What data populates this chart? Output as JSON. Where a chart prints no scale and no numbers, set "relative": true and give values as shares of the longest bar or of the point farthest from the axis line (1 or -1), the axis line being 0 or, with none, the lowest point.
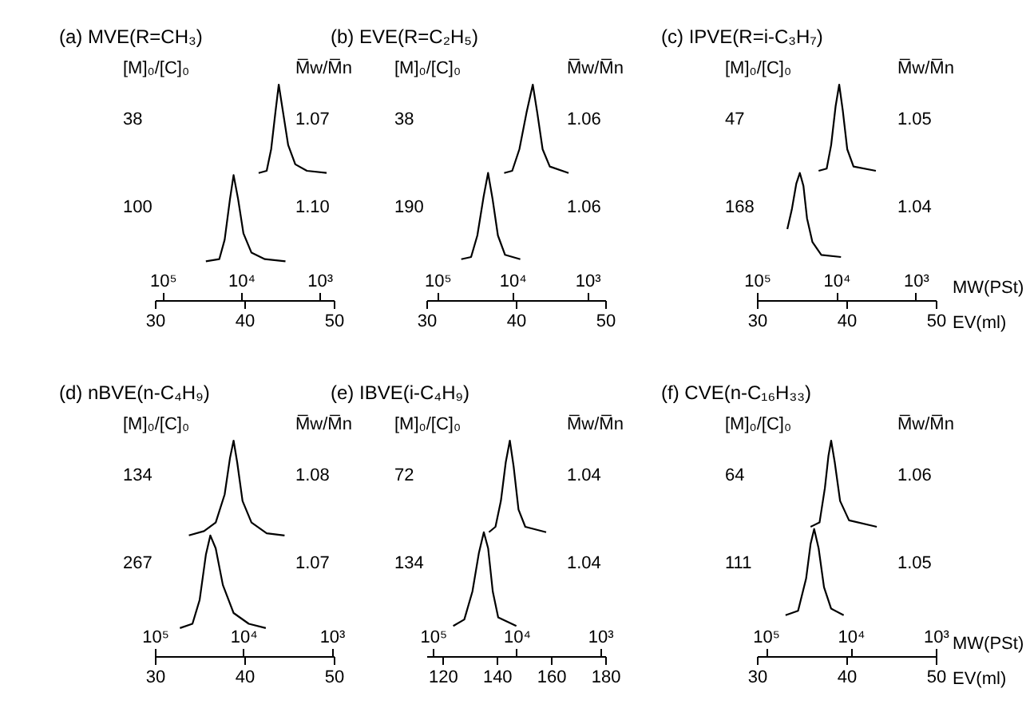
{
  "chart_data": [
    {
      "type": "line",
      "relative": true,
      "title": "(a) MVE(R=CH₃)",
      "xlim": [
        30,
        50
      ],
      "xticks": [
        30,
        40,
        50
      ],
      "x2lim": [
        126000,
        660
      ],
      "log": "x2",
      "x2ticks": [
        {
          "value": 100000,
          "label": "10⁵"
        },
        {
          "value": 10000,
          "label": "10⁴"
        },
        {
          "value": 1000,
          "label": "10³"
        }
      ],
      "annotations": [
        "[M]₀/[C]₀",
        "M̅w/M̅n",
        "38",
        "1.07",
        "100",
        "1.10"
      ],
      "series": [
        {
          "color": "#000000",
          "x": [
            41.6,
            42.5,
            43.0,
            43.5,
            43.85,
            44.3,
            44.9,
            45.7,
            47.0,
            49.2
          ],
          "values": [
            0.59,
            0.6,
            0.7,
            0.88,
            1.0,
            0.88,
            0.72,
            0.63,
            0.6,
            0.59
          ]
        },
        {
          "color": "#000000",
          "x": [
            35.7,
            37.2,
            37.8,
            38.4,
            38.8,
            39.3,
            39.9,
            40.8,
            42.3,
            44.6
          ],
          "values": [
            0.18,
            0.19,
            0.28,
            0.47,
            0.58,
            0.47,
            0.31,
            0.22,
            0.19,
            0.18
          ]
        }
      ]
    },
    {
      "type": "line",
      "relative": true,
      "title": "(b) EVE(R=C₂H₅)",
      "xlim": [
        30,
        50
      ],
      "xticks": [
        30,
        40,
        50
      ],
      "x2lim": [
        140000,
        580
      ],
      "log": "x2",
      "x2ticks": [
        {
          "value": 100000,
          "label": "10⁵"
        },
        {
          "value": 10000,
          "label": "10⁴"
        },
        {
          "value": 1000,
          "label": "10³"
        }
      ],
      "annotations": [
        "[M]₀/[C]₀",
        "M̅w/M̅n",
        "38",
        "1.06",
        "190",
        "1.06"
      ],
      "series": [
        {
          "color": "#000000",
          "x": [
            38.7,
            39.6,
            40.4,
            41.2,
            41.9,
            42.4,
            43.0,
            43.8,
            45.9
          ],
          "values": [
            0.59,
            0.6,
            0.7,
            0.87,
            1.0,
            0.87,
            0.7,
            0.62,
            0.59
          ]
        },
        {
          "color": "#000000",
          "x": [
            33.9,
            35.0,
            35.7,
            36.4,
            36.9,
            37.4,
            38.0,
            38.8,
            40.5
          ],
          "values": [
            0.19,
            0.2,
            0.3,
            0.48,
            0.59,
            0.47,
            0.3,
            0.21,
            0.19
          ]
        }
      ]
    },
    {
      "type": "line",
      "relative": true,
      "title": "(c) IPVE(R=i-C₃H₇)",
      "xlim": [
        30,
        50
      ],
      "xticks": [
        30,
        40,
        50
      ],
      "xlabel": "EV(ml)",
      "x2lim": [
        100000,
        560
      ],
      "log": "x2",
      "x2ticks": [
        {
          "value": 100000,
          "label": "10⁵"
        },
        {
          "value": 10000,
          "label": "10⁴"
        },
        {
          "value": 1000,
          "label": "10³"
        }
      ],
      "x2label": "MW(PSt)",
      "annotations": [
        "[M]₀/[C]₀",
        "M̅w/M̅n",
        "47",
        "1.05",
        "168",
        "1.04"
      ],
      "series": [
        {
          "color": "#000000",
          "x": [
            36.9,
            37.8,
            38.3,
            38.8,
            39.2,
            39.6,
            40.1,
            40.8,
            43.3
          ],
          "values": [
            0.6,
            0.61,
            0.72,
            0.9,
            1.0,
            0.88,
            0.7,
            0.62,
            0.6
          ]
        },
        {
          "color": "#000000",
          "x": [
            33.4,
            33.9,
            34.4,
            34.8,
            35.2,
            35.6,
            36.2,
            37.2,
            39.4
          ],
          "values": [
            0.33,
            0.42,
            0.54,
            0.59,
            0.53,
            0.38,
            0.27,
            0.21,
            0.2
          ]
        }
      ]
    },
    {
      "type": "line",
      "relative": true,
      "title": "(d) nBVE(n-C₄H₉)",
      "xlim": [
        30,
        50
      ],
      "xticks": [
        30,
        40,
        50
      ],
      "x2lim": [
        100000,
        950
      ],
      "log": "x2",
      "x2ticks": [
        {
          "value": 100000,
          "label": "10⁵"
        },
        {
          "value": 10000,
          "label": "10⁴"
        },
        {
          "value": 1000,
          "label": "10³"
        }
      ],
      "annotations": [
        "[M]₀/[C]₀",
        "M̅w/M̅n",
        "134",
        "1.08",
        "267",
        "1.07"
      ],
      "series": [
        {
          "color": "#000000",
          "x": [
            33.8,
            35.5,
            36.8,
            37.8,
            38.4,
            38.8,
            39.2,
            39.8,
            40.8,
            42.5,
            44.5
          ],
          "values": [
            0.56,
            0.58,
            0.62,
            0.75,
            0.92,
            1.0,
            0.9,
            0.72,
            0.62,
            0.57,
            0.56
          ]
        },
        {
          "color": "#000000",
          "x": [
            32.8,
            34.2,
            35.0,
            35.7,
            36.2,
            36.8,
            37.6,
            38.8,
            40.5,
            42.4
          ],
          "values": [
            0.13,
            0.15,
            0.26,
            0.47,
            0.56,
            0.5,
            0.33,
            0.2,
            0.15,
            0.13
          ]
        }
      ]
    },
    {
      "type": "line",
      "relative": true,
      "title": "(e) IBVE(i-C₄H₉)",
      "xlim": [
        114,
        180
      ],
      "xticks": [
        120,
        140,
        160,
        180
      ],
      "x2lim": [
        120000,
        870
      ],
      "log": "x2",
      "x2ticks": [
        {
          "value": 100000,
          "label": "10⁵"
        },
        {
          "value": 10000,
          "label": "10⁴"
        },
        {
          "value": 1000,
          "label": "10³"
        }
      ],
      "annotations": [
        "[M]₀/[C]₀",
        "M̅w/M̅n",
        "72",
        "1.04",
        "134",
        "1.04"
      ],
      "series": [
        {
          "color": "#000000",
          "x": [
            137.1,
            139.5,
            141.5,
            143.3,
            144.8,
            146.2,
            148.0,
            150.5,
            158.2
          ],
          "values": [
            0.575,
            0.6,
            0.72,
            0.9,
            1.0,
            0.88,
            0.68,
            0.6,
            0.575
          ]
        },
        {
          "color": "#000000",
          "x": [
            123.9,
            128.0,
            131.0,
            133.4,
            135.2,
            136.8,
            138.5,
            140.5,
            147.2
          ],
          "values": [
            0.14,
            0.17,
            0.3,
            0.48,
            0.575,
            0.5,
            0.3,
            0.18,
            0.14
          ]
        }
      ]
    },
    {
      "type": "line",
      "relative": true,
      "title": "(f) CVE(n-C₁₆H₃₃)",
      "xlim": [
        30,
        50
      ],
      "xticks": [
        30,
        40,
        50
      ],
      "xlabel": "EV(ml)",
      "x2lim": [
        127000,
        1000
      ],
      "log": "x2",
      "x2ticks": [
        {
          "value": 100000,
          "label": "10⁵"
        },
        {
          "value": 10000,
          "label": "10⁴"
        },
        {
          "value": 1000,
          "label": "10³"
        }
      ],
      "x2label": "MW(PSt)",
      "annotations": [
        "[M]₀/[C]₀",
        "M̅w/M̅n",
        "64",
        "1.06",
        "111",
        "1.05"
      ],
      "series": [
        {
          "color": "#000000",
          "x": [
            36.0,
            37.0,
            37.6,
            38.0,
            38.3,
            38.7,
            39.3,
            40.3,
            43.4
          ],
          "values": [
            0.6,
            0.62,
            0.78,
            0.93,
            1.0,
            0.9,
            0.72,
            0.63,
            0.6
          ]
        },
        {
          "color": "#000000",
          "x": [
            33.2,
            34.6,
            35.5,
            36.0,
            36.4,
            36.9,
            37.5,
            38.3,
            39.7
          ],
          "values": [
            0.19,
            0.21,
            0.36,
            0.52,
            0.59,
            0.5,
            0.32,
            0.22,
            0.19
          ]
        }
      ]
    }
  ]
}
